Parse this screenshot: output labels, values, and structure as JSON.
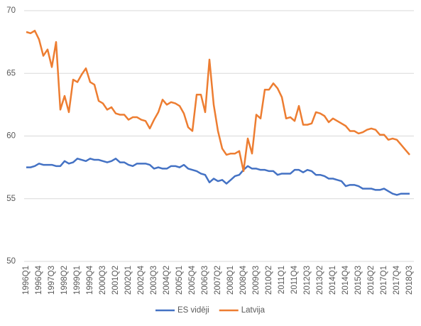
{
  "chart_data": {
    "type": "line",
    "categories": [
      "1996Q1",
      null,
      null,
      "1996Q4",
      null,
      null,
      "1997Q3",
      null,
      null,
      "1998Q2",
      null,
      null,
      "1999Q1",
      null,
      null,
      "1999Q4",
      null,
      null,
      "2000Q3",
      null,
      null,
      "2001Q2",
      null,
      null,
      "2002Q1",
      null,
      null,
      "2002Q4",
      null,
      null,
      "2003Q3",
      null,
      null,
      "2004Q2",
      null,
      null,
      "2005Q1",
      null,
      null,
      "2005Q4",
      null,
      null,
      "2006Q3",
      null,
      null,
      "2007Q2",
      null,
      null,
      "2008Q1",
      null,
      null,
      "2008Q4",
      null,
      null,
      "2009Q3",
      null,
      null,
      "2010Q2",
      null,
      null,
      "2011Q1",
      null,
      null,
      "2011Q4",
      null,
      null,
      "2012Q3",
      null,
      null,
      "2013Q2",
      null,
      null,
      "2014Q1",
      null,
      null,
      "2014Q4",
      null,
      null,
      "2015Q3",
      null,
      null,
      "2016Q2",
      null,
      null,
      "2017Q1",
      null,
      null,
      "2017Q4",
      null,
      null,
      "2018Q3"
    ],
    "series": [
      {
        "name": "ES vidēji",
        "color": "#4472c4",
        "values": [
          57.5,
          57.5,
          57.6,
          57.8,
          57.7,
          57.7,
          57.7,
          57.6,
          57.6,
          58.0,
          57.8,
          57.9,
          58.2,
          58.1,
          58.0,
          58.2,
          58.1,
          58.1,
          58.0,
          57.9,
          58.0,
          58.2,
          57.9,
          57.9,
          57.7,
          57.6,
          57.8,
          57.8,
          57.8,
          57.7,
          57.4,
          57.5,
          57.4,
          57.4,
          57.6,
          57.6,
          57.5,
          57.7,
          57.4,
          57.3,
          57.2,
          57.0,
          56.9,
          56.3,
          56.6,
          56.4,
          56.5,
          56.2,
          56.5,
          56.8,
          56.9,
          57.3,
          57.6,
          57.4,
          57.4,
          57.3,
          57.3,
          57.2,
          57.2,
          56.9,
          57.0,
          57.0,
          57.0,
          57.3,
          57.3,
          57.1,
          57.3,
          57.2,
          56.9,
          56.9,
          56.8,
          56.6,
          56.6,
          56.5,
          56.4,
          56.0,
          56.1,
          56.1,
          56.0,
          55.8,
          55.8,
          55.8,
          55.7,
          55.7,
          55.8,
          55.6,
          55.4,
          55.3,
          55.4,
          55.4,
          55.4
        ]
      },
      {
        "name": "Latvija",
        "color": "#ed7d31",
        "values": [
          68.3,
          68.2,
          68.4,
          67.7,
          66.4,
          66.9,
          65.5,
          67.5,
          62.1,
          63.2,
          61.9,
          64.5,
          64.3,
          64.9,
          65.4,
          64.3,
          64.1,
          62.8,
          62.6,
          62.1,
          62.3,
          61.8,
          61.7,
          61.7,
          61.3,
          61.5,
          61.5,
          61.3,
          61.2,
          60.6,
          61.3,
          61.9,
          62.9,
          62.5,
          62.7,
          62.6,
          62.4,
          61.8,
          60.7,
          60.4,
          63.3,
          63.3,
          61.9,
          66.1,
          62.5,
          60.4,
          59.0,
          58.5,
          58.6,
          58.6,
          58.8,
          57.2,
          59.8,
          58.6,
          61.7,
          61.4,
          63.7,
          63.7,
          64.2,
          63.8,
          63.1,
          61.4,
          61.5,
          61.2,
          62.4,
          60.9,
          60.9,
          61.0,
          61.9,
          61.8,
          61.6,
          61.1,
          61.4,
          61.2,
          61.0,
          60.8,
          60.4,
          60.4,
          60.2,
          60.3,
          60.5,
          60.6,
          60.5,
          60.1,
          60.1,
          59.7,
          59.8,
          59.7,
          59.3,
          58.9,
          58.5
        ]
      }
    ],
    "ylim": [
      50,
      70
    ],
    "yticks": [
      50,
      55,
      60,
      65,
      70
    ],
    "grid": true
  }
}
